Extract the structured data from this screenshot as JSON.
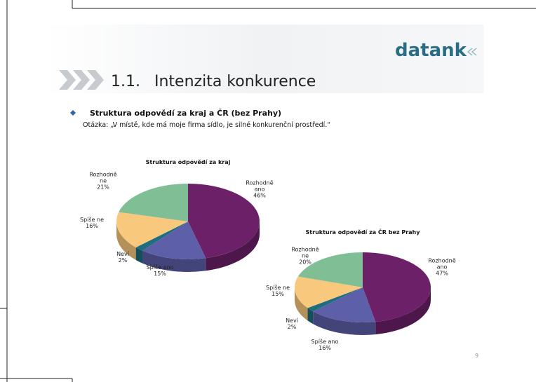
{
  "slide": {
    "logo": "datank",
    "section_number": "1.1.",
    "title": "Intenzita konkurence",
    "heading": "Struktura odpovědí za kraj a ČR (bez Prahy)",
    "question": "Otázka: „V místě, kde má moje firma sídlo, je silné konkurenční prostředí.“",
    "page_number": "9"
  },
  "chart_data": [
    {
      "type": "pie",
      "title": "Struktura odpovědí za kraj",
      "categories": [
        "Rozhodně ano",
        "Spíše ano",
        "Neví",
        "Spíše ne",
        "Rozhodně ne"
      ],
      "values": [
        46,
        15,
        2,
        16,
        21
      ],
      "value_labels": [
        "46%",
        "15%",
        "2%",
        "16%",
        "21%"
      ],
      "colors": [
        "#6b2068",
        "#5d5fa8",
        "#1f6e7f",
        "#f8c97c",
        "#80bf95"
      ]
    },
    {
      "type": "pie",
      "title": "Struktura odpovědí za ČR bez Prahy",
      "categories": [
        "Rozhodně ano",
        "Spíše ano",
        "Neví",
        "Spíše ne",
        "Rozhodně ne"
      ],
      "values": [
        47,
        16,
        2,
        15,
        20
      ],
      "value_labels": [
        "47%",
        "16%",
        "2%",
        "15%",
        "20%"
      ],
      "colors": [
        "#6b2068",
        "#5d5fa8",
        "#1f6e7f",
        "#f8c97c",
        "#80bf95"
      ]
    }
  ]
}
